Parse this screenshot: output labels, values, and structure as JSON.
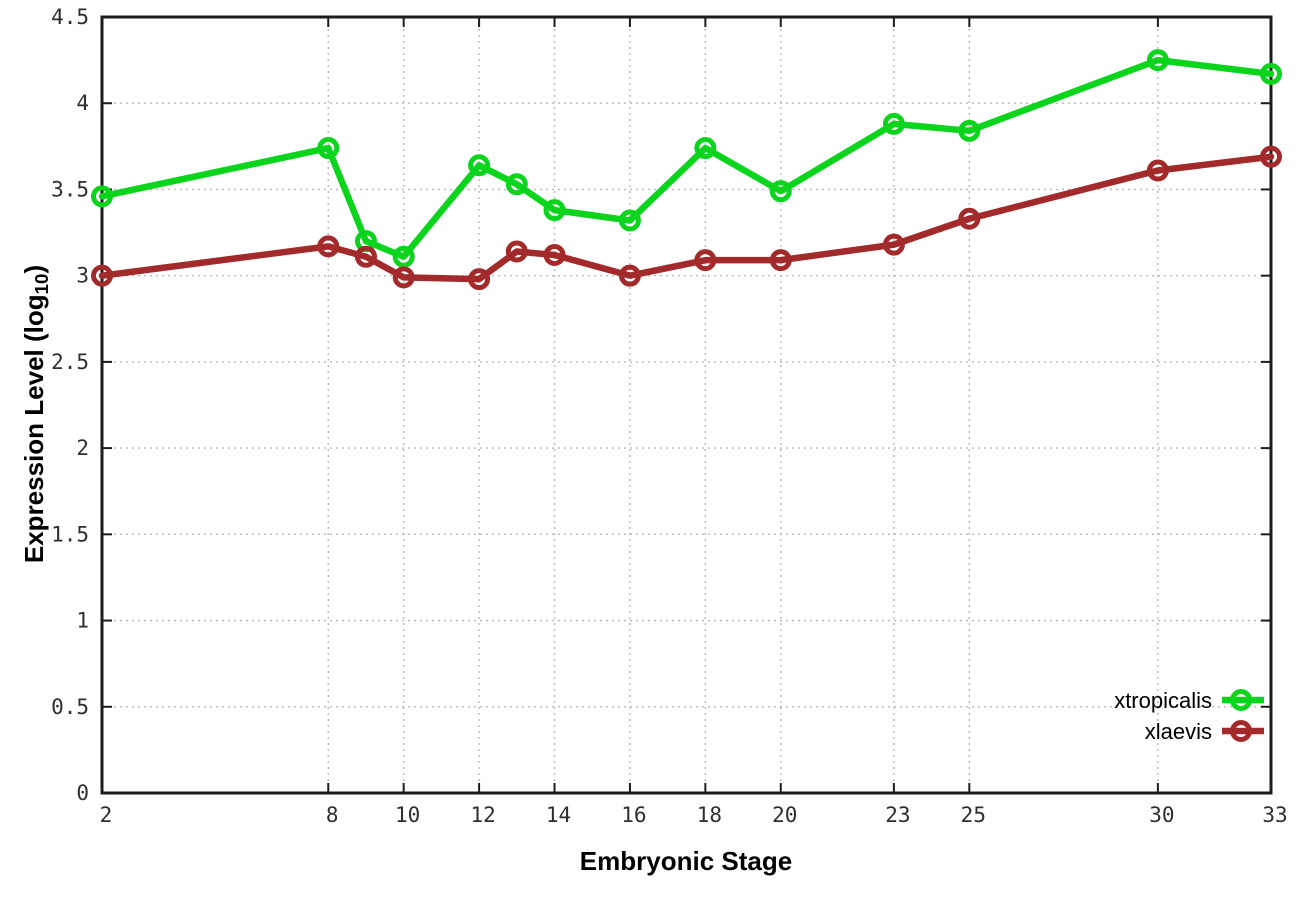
{
  "figure": {
    "background": "#ffffff",
    "xlabel": "Embryonic Stage",
    "ylabel_prefix": "Expression Level (log",
    "ylabel_sub": "10",
    "ylabel_suffix": ")"
  },
  "chart_data": {
    "type": "line",
    "title": "",
    "xlabel": "Embryonic Stage",
    "ylabel": "Expression Level (log10)",
    "x": [
      2,
      8,
      9,
      10,
      12,
      13,
      14,
      16,
      18,
      20,
      23,
      25,
      30,
      33
    ],
    "series": [
      {
        "name": "xtropicalis",
        "color": "#0bd41c",
        "values": [
          3.46,
          3.74,
          3.2,
          3.11,
          3.64,
          3.53,
          3.38,
          3.32,
          3.74,
          3.49,
          3.88,
          3.84,
          4.25,
          4.17
        ]
      },
      {
        "name": "xlaevis",
        "color": "#a32a2a",
        "values": [
          3.0,
          3.17,
          3.11,
          2.99,
          2.98,
          3.14,
          3.12,
          3.0,
          3.09,
          3.09,
          3.18,
          3.33,
          3.61,
          3.69
        ]
      }
    ],
    "xticks": [
      2,
      8,
      10,
      12,
      14,
      16,
      18,
      20,
      23,
      25,
      30,
      33
    ],
    "yticks": [
      0,
      0.5,
      1,
      1.5,
      2,
      2.5,
      3,
      3.5,
      4,
      4.5
    ],
    "xlim": [
      2,
      33
    ],
    "ylim": [
      0,
      4.5
    ],
    "grid": true,
    "grid_color": "#b9b9b9",
    "axis_color": "#1c1c1c",
    "legend_position": "bottom-right",
    "marker": "open-circle"
  }
}
